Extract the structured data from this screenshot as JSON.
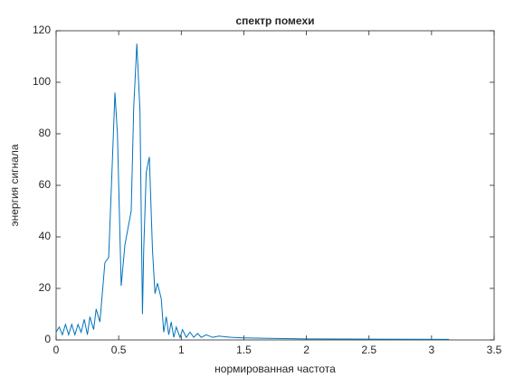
{
  "chart_data": {
    "type": "line",
    "title": "спектр помехи",
    "xlabel": "нормированная частота",
    "ylabel": "энергия сигнала",
    "x": [
      0,
      0.025,
      0.05,
      0.075,
      0.1,
      0.125,
      0.15,
      0.175,
      0.2,
      0.225,
      0.25,
      0.27,
      0.3,
      0.32,
      0.35,
      0.39,
      0.42,
      0.45,
      0.47,
      0.49,
      0.52,
      0.55,
      0.6,
      0.62,
      0.645,
      0.67,
      0.69,
      0.7,
      0.72,
      0.745,
      0.77,
      0.79,
      0.81,
      0.84,
      0.86,
      0.88,
      0.9,
      0.92,
      0.94,
      0.96,
      0.99,
      1.01,
      1.04,
      1.07,
      1.1,
      1.13,
      1.16,
      1.2,
      1.25,
      1.3,
      1.4,
      1.5,
      1.7,
      2.0,
      2.5,
      3.14
    ],
    "series": [
      {
        "color": "#0072bd",
        "values": [
          3,
          5,
          2,
          6,
          2,
          6,
          2,
          6,
          3,
          8,
          2,
          9,
          4,
          12,
          7,
          30,
          32,
          70,
          96,
          80,
          21,
          37,
          50,
          90,
          115,
          89,
          10,
          35,
          65,
          71,
          35,
          18,
          22,
          16,
          3,
          9,
          2,
          7,
          1,
          5,
          1,
          4,
          1,
          3,
          1,
          2.5,
          1,
          2,
          1,
          1.5,
          1,
          0.8,
          0.6,
          0.4,
          0.3,
          0.2
        ]
      }
    ],
    "xlim": [
      0,
      3.5
    ],
    "xticks": [
      0,
      0.5,
      1,
      1.5,
      2,
      2.5,
      3,
      3.5
    ],
    "ylim": [
      0,
      120
    ],
    "yticks": [
      0,
      20,
      40,
      60,
      80,
      100,
      120
    ]
  }
}
